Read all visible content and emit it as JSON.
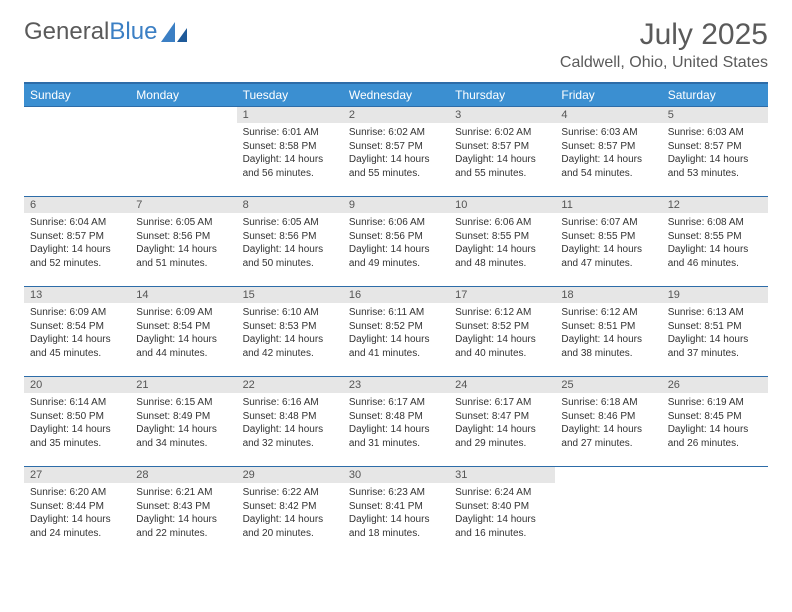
{
  "brand": {
    "part1": "General",
    "part2": "Blue"
  },
  "title": "July 2025",
  "location": "Caldwell, Ohio, United States",
  "colors": {
    "header_bg": "#3b8fd1",
    "header_border": "#2d6ca8",
    "daynum_bg": "#e6e6e6",
    "text": "#333333",
    "brand_gray": "#5a5a5a",
    "brand_blue": "#3b7fc4"
  },
  "day_headers": [
    "Sunday",
    "Monday",
    "Tuesday",
    "Wednesday",
    "Thursday",
    "Friday",
    "Saturday"
  ],
  "weeks": [
    [
      {
        "n": "",
        "sr": "",
        "ss": "",
        "dl": ""
      },
      {
        "n": "",
        "sr": "",
        "ss": "",
        "dl": ""
      },
      {
        "n": "1",
        "sr": "Sunrise: 6:01 AM",
        "ss": "Sunset: 8:58 PM",
        "dl": "Daylight: 14 hours and 56 minutes."
      },
      {
        "n": "2",
        "sr": "Sunrise: 6:02 AM",
        "ss": "Sunset: 8:57 PM",
        "dl": "Daylight: 14 hours and 55 minutes."
      },
      {
        "n": "3",
        "sr": "Sunrise: 6:02 AM",
        "ss": "Sunset: 8:57 PM",
        "dl": "Daylight: 14 hours and 55 minutes."
      },
      {
        "n": "4",
        "sr": "Sunrise: 6:03 AM",
        "ss": "Sunset: 8:57 PM",
        "dl": "Daylight: 14 hours and 54 minutes."
      },
      {
        "n": "5",
        "sr": "Sunrise: 6:03 AM",
        "ss": "Sunset: 8:57 PM",
        "dl": "Daylight: 14 hours and 53 minutes."
      }
    ],
    [
      {
        "n": "6",
        "sr": "Sunrise: 6:04 AM",
        "ss": "Sunset: 8:57 PM",
        "dl": "Daylight: 14 hours and 52 minutes."
      },
      {
        "n": "7",
        "sr": "Sunrise: 6:05 AM",
        "ss": "Sunset: 8:56 PM",
        "dl": "Daylight: 14 hours and 51 minutes."
      },
      {
        "n": "8",
        "sr": "Sunrise: 6:05 AM",
        "ss": "Sunset: 8:56 PM",
        "dl": "Daylight: 14 hours and 50 minutes."
      },
      {
        "n": "9",
        "sr": "Sunrise: 6:06 AM",
        "ss": "Sunset: 8:56 PM",
        "dl": "Daylight: 14 hours and 49 minutes."
      },
      {
        "n": "10",
        "sr": "Sunrise: 6:06 AM",
        "ss": "Sunset: 8:55 PM",
        "dl": "Daylight: 14 hours and 48 minutes."
      },
      {
        "n": "11",
        "sr": "Sunrise: 6:07 AM",
        "ss": "Sunset: 8:55 PM",
        "dl": "Daylight: 14 hours and 47 minutes."
      },
      {
        "n": "12",
        "sr": "Sunrise: 6:08 AM",
        "ss": "Sunset: 8:55 PM",
        "dl": "Daylight: 14 hours and 46 minutes."
      }
    ],
    [
      {
        "n": "13",
        "sr": "Sunrise: 6:09 AM",
        "ss": "Sunset: 8:54 PM",
        "dl": "Daylight: 14 hours and 45 minutes."
      },
      {
        "n": "14",
        "sr": "Sunrise: 6:09 AM",
        "ss": "Sunset: 8:54 PM",
        "dl": "Daylight: 14 hours and 44 minutes."
      },
      {
        "n": "15",
        "sr": "Sunrise: 6:10 AM",
        "ss": "Sunset: 8:53 PM",
        "dl": "Daylight: 14 hours and 42 minutes."
      },
      {
        "n": "16",
        "sr": "Sunrise: 6:11 AM",
        "ss": "Sunset: 8:52 PM",
        "dl": "Daylight: 14 hours and 41 minutes."
      },
      {
        "n": "17",
        "sr": "Sunrise: 6:12 AM",
        "ss": "Sunset: 8:52 PM",
        "dl": "Daylight: 14 hours and 40 minutes."
      },
      {
        "n": "18",
        "sr": "Sunrise: 6:12 AM",
        "ss": "Sunset: 8:51 PM",
        "dl": "Daylight: 14 hours and 38 minutes."
      },
      {
        "n": "19",
        "sr": "Sunrise: 6:13 AM",
        "ss": "Sunset: 8:51 PM",
        "dl": "Daylight: 14 hours and 37 minutes."
      }
    ],
    [
      {
        "n": "20",
        "sr": "Sunrise: 6:14 AM",
        "ss": "Sunset: 8:50 PM",
        "dl": "Daylight: 14 hours and 35 minutes."
      },
      {
        "n": "21",
        "sr": "Sunrise: 6:15 AM",
        "ss": "Sunset: 8:49 PM",
        "dl": "Daylight: 14 hours and 34 minutes."
      },
      {
        "n": "22",
        "sr": "Sunrise: 6:16 AM",
        "ss": "Sunset: 8:48 PM",
        "dl": "Daylight: 14 hours and 32 minutes."
      },
      {
        "n": "23",
        "sr": "Sunrise: 6:17 AM",
        "ss": "Sunset: 8:48 PM",
        "dl": "Daylight: 14 hours and 31 minutes."
      },
      {
        "n": "24",
        "sr": "Sunrise: 6:17 AM",
        "ss": "Sunset: 8:47 PM",
        "dl": "Daylight: 14 hours and 29 minutes."
      },
      {
        "n": "25",
        "sr": "Sunrise: 6:18 AM",
        "ss": "Sunset: 8:46 PM",
        "dl": "Daylight: 14 hours and 27 minutes."
      },
      {
        "n": "26",
        "sr": "Sunrise: 6:19 AM",
        "ss": "Sunset: 8:45 PM",
        "dl": "Daylight: 14 hours and 26 minutes."
      }
    ],
    [
      {
        "n": "27",
        "sr": "Sunrise: 6:20 AM",
        "ss": "Sunset: 8:44 PM",
        "dl": "Daylight: 14 hours and 24 minutes."
      },
      {
        "n": "28",
        "sr": "Sunrise: 6:21 AM",
        "ss": "Sunset: 8:43 PM",
        "dl": "Daylight: 14 hours and 22 minutes."
      },
      {
        "n": "29",
        "sr": "Sunrise: 6:22 AM",
        "ss": "Sunset: 8:42 PM",
        "dl": "Daylight: 14 hours and 20 minutes."
      },
      {
        "n": "30",
        "sr": "Sunrise: 6:23 AM",
        "ss": "Sunset: 8:41 PM",
        "dl": "Daylight: 14 hours and 18 minutes."
      },
      {
        "n": "31",
        "sr": "Sunrise: 6:24 AM",
        "ss": "Sunset: 8:40 PM",
        "dl": "Daylight: 14 hours and 16 minutes."
      },
      {
        "n": "",
        "sr": "",
        "ss": "",
        "dl": ""
      },
      {
        "n": "",
        "sr": "",
        "ss": "",
        "dl": ""
      }
    ]
  ]
}
